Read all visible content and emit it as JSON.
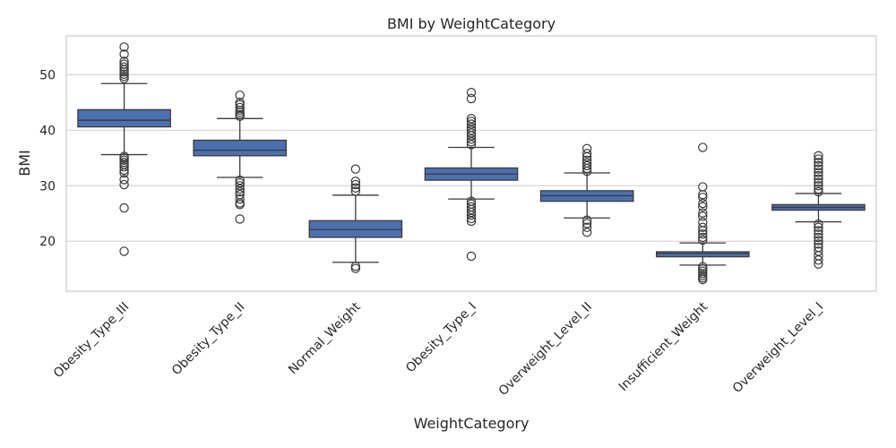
{
  "chart_data": {
    "type": "box",
    "title": "BMI by WeightCategory",
    "xlabel": "WeightCategory",
    "ylabel": "BMI",
    "ylim": [
      11,
      57
    ],
    "yticks": [
      20,
      30,
      40,
      50
    ],
    "grid": true,
    "colors": {
      "box_fill": "#4c6fb0",
      "line": "#3a3a3a",
      "grid": "#d6d6d6",
      "frame": "#cccccc"
    },
    "categories": [
      "Obesity_Type_III",
      "Obesity_Type_II",
      "Normal_Weight",
      "Obesity_Type_I",
      "Overweight_Level_II",
      "Insufficient_Weight",
      "Overweight_Level_I"
    ],
    "series": [
      {
        "category": "Obesity_Type_III",
        "whisker_low": 35.6,
        "q1": 40.6,
        "median": 41.8,
        "q3": 43.7,
        "whisker_high": 48.4,
        "outliers": [
          55.0,
          53.7,
          52.4,
          51.9,
          51.4,
          50.9,
          50.5,
          50.1,
          49.7,
          49.3,
          35.3,
          35.0,
          34.6,
          34.2,
          33.8,
          33.4,
          32.8,
          32.3,
          31.1,
          30.2,
          26.0,
          18.2
        ]
      },
      {
        "category": "Obesity_Type_II",
        "whisker_low": 31.5,
        "q1": 35.4,
        "median": 36.4,
        "q3": 38.2,
        "whisker_high": 42.1,
        "outliers": [
          46.3,
          45.0,
          44.6,
          44.1,
          43.6,
          43.2,
          42.8,
          42.5,
          31.0,
          30.5,
          30.0,
          29.4,
          28.9,
          28.4,
          27.6,
          26.9,
          26.6,
          24.0
        ]
      },
      {
        "category": "Normal_Weight",
        "whisker_low": 16.2,
        "q1": 20.7,
        "median": 22.1,
        "q3": 23.7,
        "whisker_high": 28.3,
        "outliers": [
          33.0,
          30.8,
          30.2,
          29.6,
          29.0,
          15.5,
          15.1
        ]
      },
      {
        "category": "Obesity_Type_I",
        "whisker_low": 27.6,
        "q1": 31.0,
        "median": 32.1,
        "q3": 33.2,
        "whisker_high": 36.9,
        "outliers": [
          46.8,
          45.7,
          42.1,
          41.6,
          41.1,
          40.5,
          40.0,
          39.5,
          39.0,
          38.4,
          37.9,
          37.4,
          27.2,
          26.7,
          26.2,
          25.7,
          25.2,
          24.7,
          24.1,
          23.6,
          17.3
        ]
      },
      {
        "category": "Overweight_Level_II",
        "whisker_low": 24.2,
        "q1": 27.2,
        "median": 28.2,
        "q3": 29.1,
        "whisker_high": 32.3,
        "outliers": [
          36.7,
          35.8,
          35.2,
          34.6,
          34.1,
          33.6,
          33.1,
          32.6,
          23.8,
          23.2,
          22.5,
          21.6
        ]
      },
      {
        "category": "Insufficient_Weight",
        "whisker_low": 15.7,
        "q1": 17.2,
        "median": 17.8,
        "q3": 18.1,
        "whisker_high": 19.7,
        "outliers": [
          36.9,
          29.8,
          28.4,
          27.9,
          26.8,
          26.2,
          25.1,
          24.5,
          23.4,
          22.5,
          21.9,
          21.3,
          20.7,
          20.2,
          15.4,
          15.0,
          14.6,
          14.2,
          13.8,
          13.4,
          13.1
        ]
      },
      {
        "category": "Overweight_Level_I",
        "whisker_low": 23.5,
        "q1": 25.6,
        "median": 26.1,
        "q3": 26.6,
        "whisker_high": 28.6,
        "outliers": [
          35.4,
          34.8,
          34.2,
          33.6,
          33.0,
          32.4,
          31.8,
          31.2,
          30.6,
          30.0,
          29.4,
          28.9,
          23.1,
          22.5,
          21.9,
          21.3,
          20.7,
          20.1,
          19.5,
          18.9,
          18.2,
          17.4,
          16.6,
          15.9
        ]
      }
    ]
  }
}
